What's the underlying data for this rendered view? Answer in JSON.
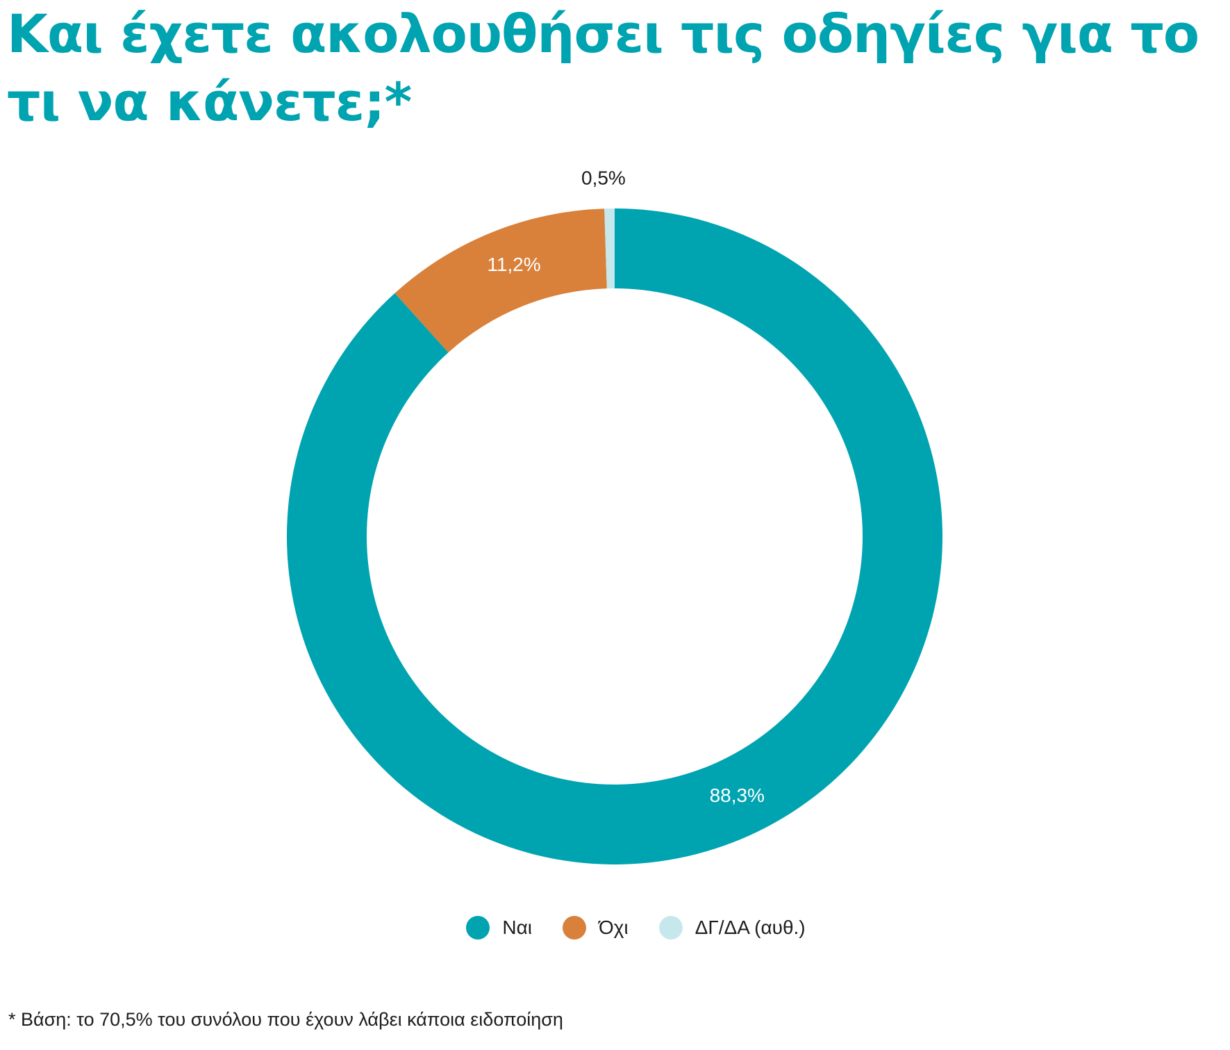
{
  "title": "Και έχετε ακολουθήσει τις οδηγίες για το τι να κάνετε;*",
  "footnote": "* Βάση: το 70,5% του συνόλου που έχουν λάβει κάποια ειδοποίηση",
  "chart_data": {
    "type": "pie",
    "donut": true,
    "title": "Και έχετε ακολουθήσει τις οδηγίες για το τι να κάνετε;*",
    "legend_position": "bottom",
    "slices": [
      {
        "label": "Ναι",
        "value": 88.3,
        "display": "88,3%",
        "color": "#00a3b0",
        "label_color": "#ffffff"
      },
      {
        "label": "Όχι",
        "value": 11.2,
        "display": "11,2%",
        "color": "#d9803a",
        "label_color": "#ffffff"
      },
      {
        "label": "ΔΓ/ΔΑ (αυθ.)",
        "value": 0.5,
        "display": "0,5%",
        "color": "#c6e8ec",
        "label_color": "#1d1d1b"
      }
    ]
  }
}
